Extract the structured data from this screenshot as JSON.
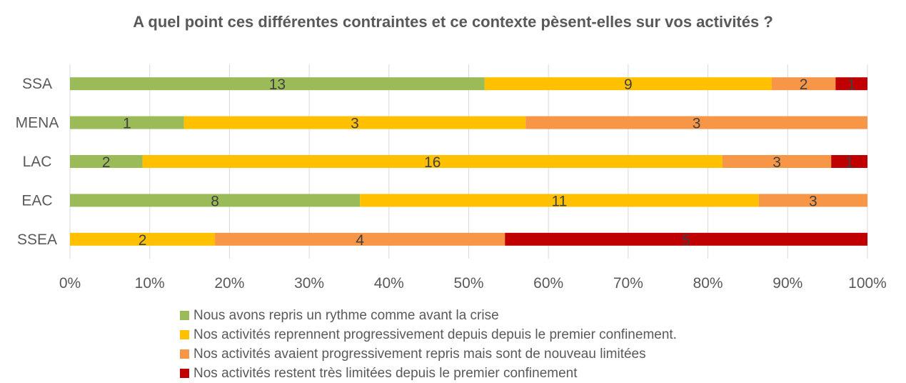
{
  "chart_data": {
    "type": "bar",
    "orientation": "horizontal",
    "stacked": "percent",
    "title": "A quel point ces différentes contraintes et ce contexte pèsent-elles sur vos activités ?",
    "categories": [
      "SSA",
      "MENA",
      "LAC",
      "EAC",
      "SSEA"
    ],
    "series": [
      {
        "name": "Nous avons repris un rythme comme avant la crise",
        "color": "#9BBB59",
        "values": [
          13,
          1,
          2,
          8,
          0
        ]
      },
      {
        "name": "Nos activités reprennent progressivement depuis depuis le premier confinement.",
        "color": "#FFC000",
        "values": [
          9,
          3,
          16,
          11,
          2
        ]
      },
      {
        "name": "Nos activités avaient progressivement repris mais sont de nouveau limitées",
        "color": "#F79646",
        "values": [
          2,
          3,
          3,
          3,
          4
        ]
      },
      {
        "name": "Nos activités restent très limitées depuis le premier confinement",
        "color": "#C00000",
        "values": [
          1,
          0,
          1,
          0,
          5
        ]
      }
    ],
    "x_ticks": [
      "0%",
      "10%",
      "20%",
      "30%",
      "40%",
      "50%",
      "60%",
      "70%",
      "80%",
      "90%",
      "100%"
    ],
    "xlim": [
      0,
      100
    ],
    "grid": "vertical",
    "legend_position": "bottom"
  }
}
